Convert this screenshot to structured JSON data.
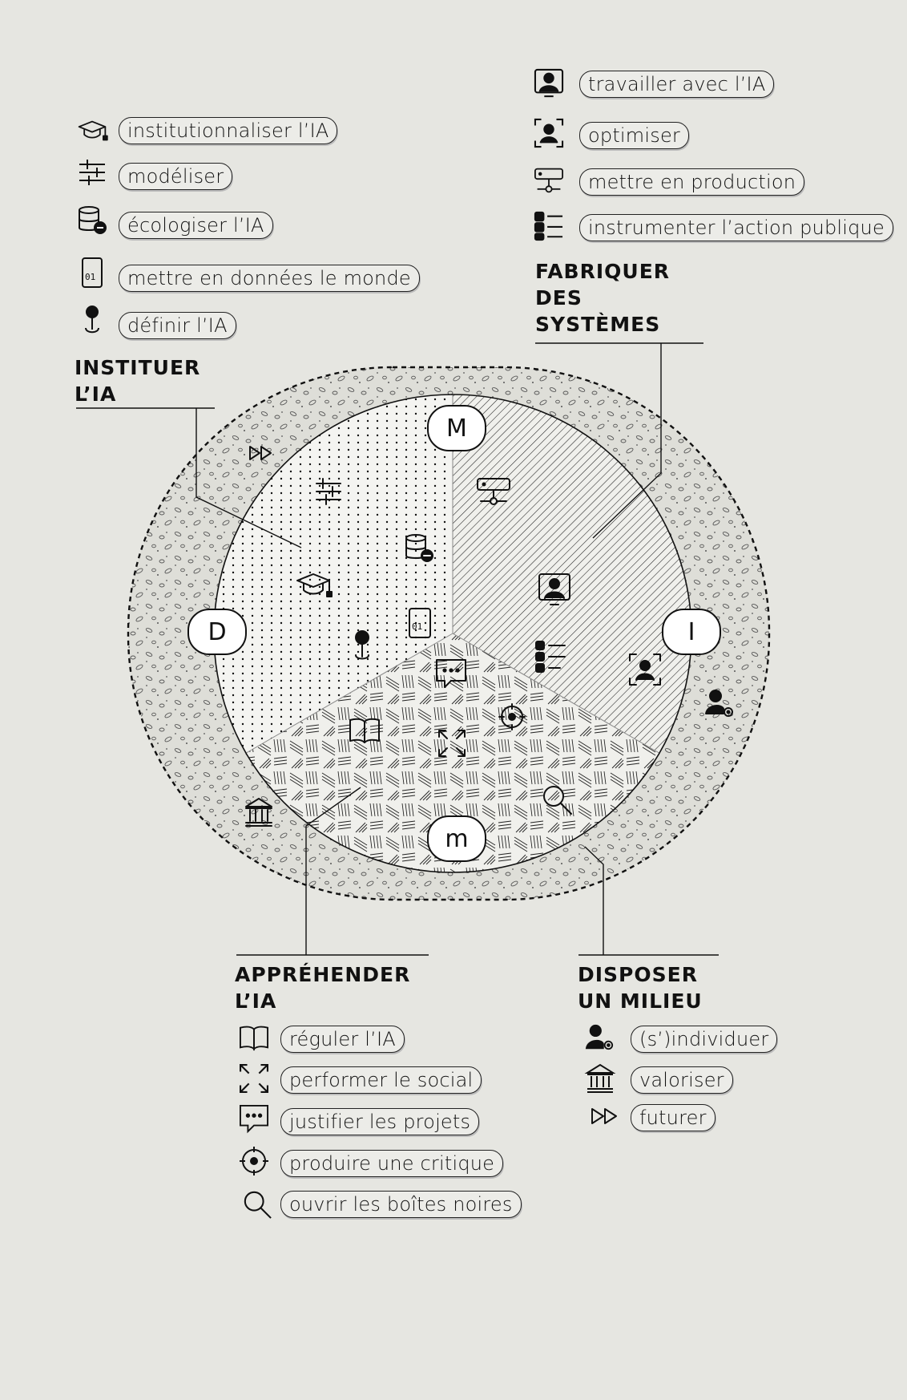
{
  "groups": {
    "instituer": {
      "title_line1": "INSTITUER",
      "title_line2": "L’IA",
      "items": [
        {
          "icon": "graduation-cap-icon",
          "label": "institutionnaliser l’IA"
        },
        {
          "icon": "sliders-icon",
          "label": "modéliser"
        },
        {
          "icon": "database-minus-icon",
          "label": "écologiser l’IA"
        },
        {
          "icon": "binary-file-icon",
          "label": "mettre en données le monde"
        },
        {
          "icon": "map-pin-icon",
          "label": "définir l’IA"
        }
      ]
    },
    "fabriquer": {
      "title_line1": "FABRIQUER",
      "title_line2": "DES",
      "title_line3": "SYSTÈMES",
      "items": [
        {
          "icon": "user-monitor-icon",
          "label": "travailler avec l’IA"
        },
        {
          "icon": "user-focus-icon",
          "label": "optimiser"
        },
        {
          "icon": "server-icon",
          "label": "mettre en production"
        },
        {
          "icon": "checklist-icon",
          "label": "instrumenter l’action publique"
        }
      ]
    },
    "apprehender": {
      "title_line1": "APPRÉHENDER",
      "title_line2": "L’IA",
      "items": [
        {
          "icon": "book-icon",
          "label": "réguler l’IA"
        },
        {
          "icon": "expand-icon",
          "label": "performer le social"
        },
        {
          "icon": "chat-bubble-icon",
          "label": "justifier les projets"
        },
        {
          "icon": "target-icon",
          "label": "produire une critique"
        },
        {
          "icon": "magnifier-icon",
          "label": "ouvrir les boîtes noires"
        }
      ]
    },
    "disposer": {
      "title_line1": "DISPOSER",
      "title_line2": "UN MILIEU",
      "items": [
        {
          "icon": "user-gear-icon",
          "label": "(s’)individuer"
        },
        {
          "icon": "institution-icon",
          "label": "valoriser"
        },
        {
          "icon": "fast-forward-icon",
          "label": "futurer"
        }
      ]
    }
  },
  "nodes": {
    "top": "M",
    "right": "I",
    "bottom": "m",
    "left": "D"
  }
}
